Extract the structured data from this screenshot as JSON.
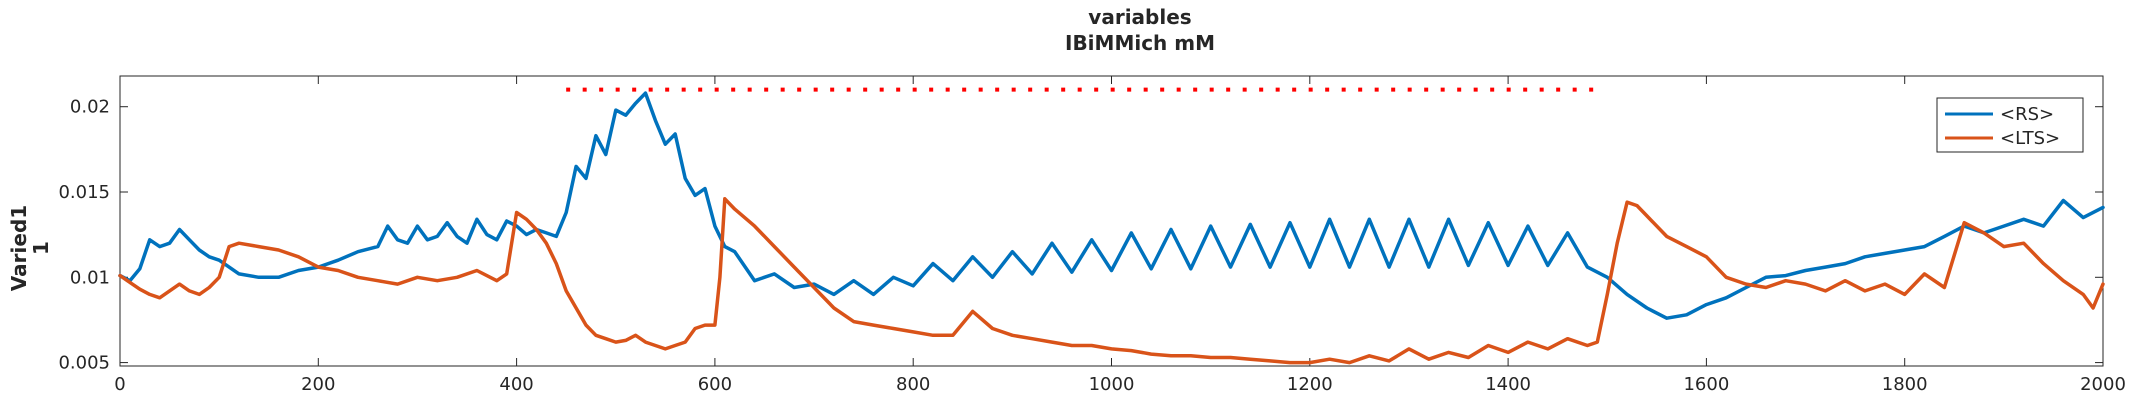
{
  "chart_data": {
    "type": "line",
    "title": "variables",
    "subtitle": "IBiMMich mM",
    "xlabel": "",
    "ylabel": "Varied1",
    "ylabel2": "1",
    "xlim": [
      0,
      2000
    ],
    "ylim": [
      0.0048,
      0.0218
    ],
    "xticks": [
      0,
      200,
      400,
      600,
      800,
      1000,
      1200,
      1400,
      1600,
      1800,
      2000
    ],
    "xtick_labels": [
      "0",
      "200",
      "400",
      "600",
      "800",
      "1000",
      "1200",
      "1400",
      "1600",
      "1800",
      "2000"
    ],
    "yticks": [
      0.005,
      0.01,
      0.015,
      0.02
    ],
    "ytick_labels": [
      "0.005",
      "0.01",
      "0.015",
      "0.02"
    ],
    "grid": false,
    "legend_position": "top-right",
    "legend": [
      "<RS>",
      "<LTS>"
    ],
    "annotation": {
      "type": "dotted-line",
      "color": "#ff0000",
      "x_start": 450,
      "x_end": 1490,
      "y": 0.021
    },
    "series": [
      {
        "name": "<RS>",
        "color": "#0072BD",
        "x": [
          0,
          10,
          20,
          30,
          40,
          50,
          60,
          70,
          80,
          90,
          100,
          110,
          120,
          140,
          160,
          180,
          200,
          220,
          240,
          260,
          270,
          280,
          290,
          300,
          310,
          320,
          330,
          340,
          350,
          360,
          370,
          380,
          390,
          400,
          410,
          420,
          430,
          440,
          450,
          460,
          470,
          480,
          490,
          500,
          510,
          520,
          530,
          540,
          550,
          560,
          570,
          580,
          590,
          600,
          610,
          620,
          640,
          660,
          680,
          700,
          720,
          740,
          760,
          780,
          800,
          820,
          840,
          860,
          880,
          900,
          920,
          940,
          960,
          980,
          1000,
          1020,
          1040,
          1060,
          1080,
          1100,
          1120,
          1140,
          1160,
          1180,
          1200,
          1220,
          1240,
          1260,
          1280,
          1300,
          1320,
          1340,
          1360,
          1380,
          1400,
          1420,
          1440,
          1460,
          1480,
          1500,
          1520,
          1540,
          1560,
          1580,
          1600,
          1620,
          1640,
          1660,
          1680,
          1700,
          1720,
          1740,
          1760,
          1780,
          1800,
          1820,
          1840,
          1860,
          1880,
          1900,
          1920,
          1940,
          1960,
          1980,
          2000
        ],
        "y": [
          0.0101,
          0.0098,
          0.0105,
          0.0122,
          0.0118,
          0.012,
          0.0128,
          0.0122,
          0.0116,
          0.0112,
          0.011,
          0.0106,
          0.0102,
          0.01,
          0.01,
          0.0104,
          0.0106,
          0.011,
          0.0115,
          0.0118,
          0.013,
          0.0122,
          0.012,
          0.013,
          0.0122,
          0.0124,
          0.0132,
          0.0124,
          0.012,
          0.0134,
          0.0125,
          0.0122,
          0.0133,
          0.013,
          0.0125,
          0.0128,
          0.0126,
          0.0124,
          0.0138,
          0.0165,
          0.0158,
          0.0183,
          0.0172,
          0.0198,
          0.0195,
          0.0202,
          0.0208,
          0.0192,
          0.0178,
          0.0184,
          0.0158,
          0.0148,
          0.0152,
          0.013,
          0.0118,
          0.0115,
          0.0098,
          0.0102,
          0.0094,
          0.0096,
          0.009,
          0.0098,
          0.009,
          0.01,
          0.0095,
          0.0108,
          0.0098,
          0.0112,
          0.01,
          0.0115,
          0.0102,
          0.012,
          0.0103,
          0.0122,
          0.0104,
          0.0126,
          0.0105,
          0.0128,
          0.0105,
          0.013,
          0.0106,
          0.0131,
          0.0106,
          0.0132,
          0.0106,
          0.0134,
          0.0106,
          0.0134,
          0.0106,
          0.0134,
          0.0106,
          0.0134,
          0.0107,
          0.0132,
          0.0107,
          0.013,
          0.0107,
          0.0126,
          0.0106,
          0.01,
          0.009,
          0.0082,
          0.0076,
          0.0078,
          0.0084,
          0.0088,
          0.0094,
          0.01,
          0.0101,
          0.0104,
          0.0106,
          0.0108,
          0.0112,
          0.0114,
          0.0116,
          0.0118,
          0.0124,
          0.013,
          0.0126,
          0.013,
          0.0134,
          0.013,
          0.0145,
          0.0135,
          0.0141
        ]
      },
      {
        "name": "<LTS>",
        "color": "#D95319",
        "x": [
          0,
          10,
          20,
          30,
          40,
          50,
          60,
          70,
          80,
          90,
          100,
          110,
          120,
          140,
          160,
          180,
          200,
          220,
          240,
          260,
          280,
          300,
          320,
          340,
          360,
          380,
          390,
          400,
          410,
          420,
          430,
          440,
          450,
          460,
          470,
          480,
          490,
          500,
          510,
          520,
          530,
          540,
          550,
          560,
          570,
          580,
          590,
          600,
          605,
          610,
          620,
          640,
          660,
          680,
          700,
          720,
          740,
          760,
          780,
          800,
          820,
          840,
          860,
          880,
          900,
          920,
          940,
          960,
          980,
          1000,
          1020,
          1040,
          1060,
          1080,
          1100,
          1120,
          1140,
          1160,
          1180,
          1200,
          1220,
          1240,
          1260,
          1280,
          1300,
          1320,
          1340,
          1360,
          1380,
          1400,
          1420,
          1440,
          1460,
          1480,
          1490,
          1500,
          1510,
          1520,
          1530,
          1540,
          1560,
          1580,
          1600,
          1620,
          1640,
          1660,
          1680,
          1700,
          1720,
          1740,
          1760,
          1780,
          1800,
          1820,
          1840,
          1860,
          1880,
          1900,
          1920,
          1940,
          1960,
          1980,
          1990,
          2000
        ],
        "y": [
          0.0101,
          0.0097,
          0.0093,
          0.009,
          0.0088,
          0.0092,
          0.0096,
          0.0092,
          0.009,
          0.0094,
          0.01,
          0.0118,
          0.012,
          0.0118,
          0.0116,
          0.0112,
          0.0106,
          0.0104,
          0.01,
          0.0098,
          0.0096,
          0.01,
          0.0098,
          0.01,
          0.0104,
          0.0098,
          0.0102,
          0.0138,
          0.0134,
          0.0128,
          0.012,
          0.0108,
          0.0092,
          0.0082,
          0.0072,
          0.0066,
          0.0064,
          0.0062,
          0.0063,
          0.0066,
          0.0062,
          0.006,
          0.0058,
          0.006,
          0.0062,
          0.007,
          0.0072,
          0.0072,
          0.01,
          0.0146,
          0.014,
          0.013,
          0.0118,
          0.0106,
          0.0094,
          0.0082,
          0.0074,
          0.0072,
          0.007,
          0.0068,
          0.0066,
          0.0066,
          0.008,
          0.007,
          0.0066,
          0.0064,
          0.0062,
          0.006,
          0.006,
          0.0058,
          0.0057,
          0.0055,
          0.0054,
          0.0054,
          0.0053,
          0.0053,
          0.0052,
          0.0051,
          0.005,
          0.005,
          0.0052,
          0.005,
          0.0054,
          0.0051,
          0.0058,
          0.0052,
          0.0056,
          0.0053,
          0.006,
          0.0056,
          0.0062,
          0.0058,
          0.0064,
          0.006,
          0.0062,
          0.009,
          0.012,
          0.0144,
          0.0142,
          0.0136,
          0.0124,
          0.0118,
          0.0112,
          0.01,
          0.0096,
          0.0094,
          0.0098,
          0.0096,
          0.0092,
          0.0098,
          0.0092,
          0.0096,
          0.009,
          0.0102,
          0.0094,
          0.0132,
          0.0126,
          0.0118,
          0.012,
          0.0108,
          0.0098,
          0.009,
          0.0082,
          0.0096
        ]
      }
    ]
  }
}
